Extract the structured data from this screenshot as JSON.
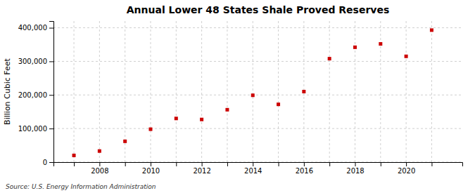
{
  "chart_data": {
    "type": "scatter",
    "title": "Annual Lower 48 States Shale Proved Reserves",
    "ylabel": "Billion Cubic Feet",
    "annotations": [
      "Source: U.S. Energy Information Administration"
    ],
    "x": [
      2007,
      2008,
      2009,
      2010,
      2011,
      2012,
      2013,
      2014,
      2015,
      2016,
      2017,
      2018,
      2019,
      2020,
      2021
    ],
    "values": [
      20000,
      33000,
      62000,
      98000,
      130000,
      127000,
      156000,
      199000,
      172000,
      210000,
      308000,
      342000,
      352000,
      315000,
      393000
    ],
    "color": "#cc0000",
    "marker": "square",
    "grid": true,
    "xlim": [
      2006.2,
      2022.2
    ],
    "xticks": [
      {
        "value": 2007,
        "label": null
      },
      2008,
      {
        "value": 2009,
        "label": null
      },
      2010,
      {
        "value": 2011,
        "label": null
      },
      2012,
      {
        "value": 2013,
        "label": null
      },
      2014,
      {
        "value": 2015,
        "label": null
      },
      2016,
      {
        "value": 2017,
        "label": null
      },
      2018,
      {
        "value": 2019,
        "label": null
      },
      2020,
      {
        "value": 2021,
        "label": null
      }
    ],
    "ylim": [
      0,
      420000
    ],
    "yticks": [
      0,
      {
        "value": 100000,
        "label": "100,000"
      },
      {
        "value": 200000,
        "label": "200,000"
      },
      {
        "value": 300000,
        "label": "300,000"
      },
      {
        "value": 400000,
        "label": "400,000"
      }
    ]
  }
}
